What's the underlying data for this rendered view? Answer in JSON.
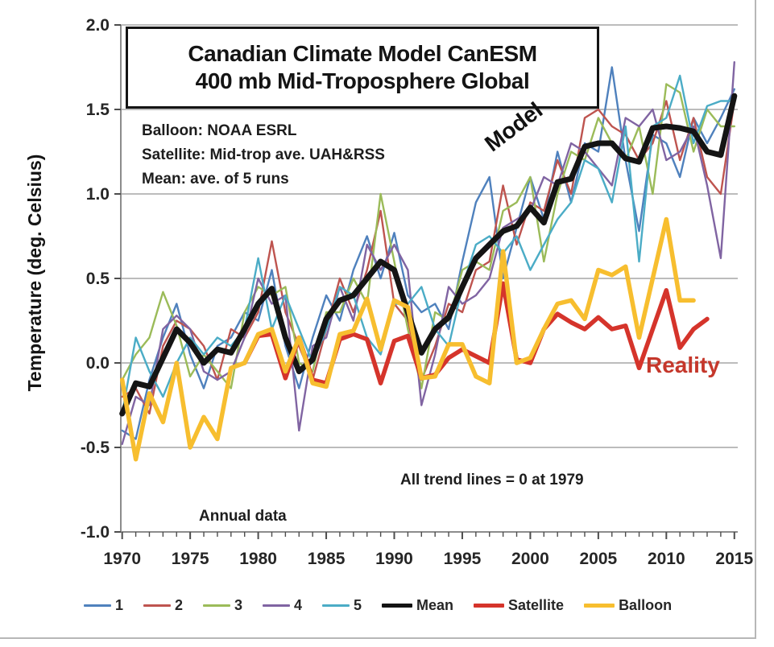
{
  "page": {
    "title_line1": "Canadian Climate Model CanESM",
    "title_line2": "400 mb Mid-Troposphere Global",
    "notes": {
      "balloon": "Balloon: NOAA ESRL",
      "satellite": "Satellite: Mid-trop ave. UAH&RSS",
      "mean": "Mean: ave. of 5 runs"
    },
    "model_annotation": "Model",
    "reality_annotation": "Reality",
    "trend_annotation": "All trend lines = 0 at 1979",
    "annual_annotation": "Annual data",
    "y_axis_label": "Temperature  (deg. Celsius)"
  },
  "colors": {
    "grid": "#a6a6a6",
    "axis": "#8c8c8c",
    "tick": "#4d4d4d",
    "tick_label": "#262626",
    "reality_label": "#c5372b",
    "frame_border": "#b7b7b7"
  },
  "chart_data": {
    "type": "line",
    "title": "Canadian Climate Model CanESM 400 mb Mid-Troposphere Global",
    "ylabel": "Temperature (deg. Celsius)",
    "xlabel": "",
    "grid": true,
    "legend_position": "bottom",
    "xlim": [
      1969.9,
      2015.25
    ],
    "ylim": [
      -1.0,
      2.0
    ],
    "x_ticks": [
      1970,
      1975,
      1980,
      1985,
      1990,
      1995,
      2000,
      2005,
      2010,
      2015
    ],
    "y_tick_labels": [
      "2.0",
      "1.5",
      "1.0",
      "0.5",
      "0.0",
      "-0.5",
      "-1.0"
    ],
    "y_ticks": [
      2.0,
      1.5,
      1.0,
      0.5,
      0.0,
      -0.5,
      -1.0
    ],
    "annotations": [
      "Model",
      "Reality",
      "All trend lines = 0 at 1979",
      "Annual data"
    ],
    "series": [
      {
        "name": "1",
        "color": "#4F81BD",
        "width": 2.4,
        "legend_thickness": 3,
        "legend_length": 34,
        "start_year": 1970,
        "values": [
          -0.4,
          -0.45,
          -0.1,
          0.15,
          0.35,
          0.05,
          -0.15,
          0.1,
          0.15,
          0.3,
          0.25,
          0.55,
          0.1,
          -0.15,
          0.15,
          0.4,
          0.25,
          0.55,
          0.75,
          0.5,
          0.77,
          0.4,
          0.3,
          0.35,
          0.2,
          0.6,
          0.95,
          1.1,
          0.5,
          0.8,
          1.1,
          0.85,
          1.25,
          0.95,
          1.3,
          1.25,
          1.75,
          1.2,
          0.78,
          1.35,
          1.3,
          1.1,
          1.45,
          1.3,
          1.45,
          1.62
        ]
      },
      {
        "name": "2",
        "color": "#BE544F",
        "width": 2.4,
        "legend_thickness": 3,
        "legend_length": 34,
        "start_year": 1970,
        "values": [
          -0.2,
          -0.15,
          -0.3,
          0.1,
          0.25,
          0.2,
          0.1,
          -0.1,
          0.2,
          0.15,
          0.3,
          0.72,
          0.3,
          0.1,
          -0.1,
          0.2,
          0.5,
          0.3,
          0.55,
          0.9,
          0.35,
          0.25,
          -0.1,
          0.1,
          0.35,
          0.3,
          0.55,
          0.6,
          1.05,
          0.7,
          0.95,
          0.9,
          1.2,
          1.0,
          1.45,
          1.5,
          1.4,
          1.35,
          1.2,
          1.3,
          1.55,
          1.2,
          1.45,
          1.1,
          1.0,
          1.55
        ]
      },
      {
        "name": "3",
        "color": "#9BBB59",
        "width": 2.4,
        "legend_thickness": 3,
        "legend_length": 34,
        "start_year": 1970,
        "values": [
          -0.1,
          0.05,
          0.15,
          0.42,
          0.22,
          -0.08,
          0.05,
          -0.05,
          -0.15,
          0.3,
          0.45,
          0.4,
          0.45,
          0.0,
          -0.05,
          0.3,
          0.3,
          0.5,
          0.35,
          1.0,
          0.6,
          0.2,
          -0.15,
          0.3,
          0.25,
          0.55,
          0.6,
          0.55,
          0.9,
          0.95,
          1.1,
          0.6,
          1.0,
          1.25,
          1.2,
          1.45,
          1.3,
          1.2,
          1.4,
          1.0,
          1.65,
          1.6,
          1.25,
          1.5,
          1.4,
          1.4
        ]
      },
      {
        "name": "4",
        "color": "#8064A2",
        "width": 2.4,
        "legend_thickness": 3,
        "legend_length": 34,
        "start_year": 1970,
        "values": [
          -0.48,
          -0.2,
          -0.25,
          0.2,
          0.28,
          0.2,
          -0.05,
          -0.1,
          -0.05,
          0.15,
          0.5,
          0.35,
          0.4,
          -0.4,
          0.1,
          0.15,
          0.45,
          0.25,
          0.7,
          0.55,
          0.7,
          0.55,
          -0.25,
          0.05,
          0.45,
          0.35,
          0.4,
          0.5,
          0.8,
          0.85,
          0.9,
          1.1,
          1.05,
          1.3,
          1.25,
          1.15,
          1.05,
          1.45,
          1.4,
          1.5,
          1.2,
          1.25,
          1.4,
          1.05,
          0.62,
          1.78
        ]
      },
      {
        "name": "5",
        "color": "#4BACC6",
        "width": 2.4,
        "legend_thickness": 3,
        "legend_length": 34,
        "start_year": 1970,
        "values": [
          -0.3,
          0.15,
          -0.05,
          -0.2,
          0.0,
          0.15,
          0.05,
          0.15,
          0.1,
          0.2,
          0.62,
          0.2,
          0.4,
          0.2,
          0.0,
          0.2,
          0.45,
          0.4,
          0.15,
          0.05,
          0.35,
          0.35,
          0.45,
          0.2,
          0.1,
          0.45,
          0.7,
          0.75,
          0.65,
          0.75,
          0.55,
          0.7,
          0.85,
          0.95,
          1.2,
          1.15,
          0.95,
          1.4,
          0.6,
          1.4,
          1.45,
          1.7,
          1.3,
          1.52,
          1.55,
          1.55
        ]
      },
      {
        "name": "Mean",
        "color": "#141414",
        "width": 7,
        "legend_thickness": 5,
        "legend_length": 38,
        "start_year": 1970,
        "values": [
          -0.3,
          -0.12,
          -0.14,
          0.03,
          0.2,
          0.12,
          0.0,
          0.08,
          0.06,
          0.2,
          0.35,
          0.44,
          0.15,
          -0.05,
          0.02,
          0.26,
          0.37,
          0.4,
          0.5,
          0.6,
          0.55,
          0.3,
          0.06,
          0.2,
          0.27,
          0.45,
          0.62,
          0.7,
          0.78,
          0.81,
          0.92,
          0.83,
          1.07,
          1.09,
          1.28,
          1.3,
          1.3,
          1.21,
          1.19,
          1.39,
          1.4,
          1.39,
          1.37,
          1.25,
          1.23,
          1.58
        ]
      },
      {
        "name": "Satellite",
        "color": "#D5342B",
        "width": 5.5,
        "legend_thickness": 5,
        "legend_length": 38,
        "start_year": 1979,
        "values": [
          0.0,
          0.16,
          0.17,
          -0.09,
          0.15,
          -0.1,
          -0.12,
          0.14,
          0.17,
          0.14,
          -0.12,
          0.13,
          0.16,
          -0.09,
          -0.07,
          0.03,
          0.08,
          0.04,
          0.0,
          0.47,
          0.02,
          0.0,
          0.2,
          0.29,
          0.24,
          0.2,
          0.27,
          0.2,
          0.22,
          -0.03,
          0.2,
          0.43,
          0.09,
          0.2,
          0.26
        ]
      },
      {
        "name": "Balloon",
        "color": "#F7BE2F",
        "width": 5.5,
        "legend_thickness": 5,
        "legend_length": 38,
        "start_year": 1970,
        "values": [
          -0.1,
          -0.57,
          -0.18,
          -0.35,
          0.0,
          -0.5,
          -0.32,
          -0.45,
          -0.03,
          0.0,
          0.17,
          0.2,
          -0.05,
          0.15,
          -0.12,
          -0.14,
          0.17,
          0.19,
          0.38,
          0.08,
          0.37,
          0.33,
          -0.09,
          -0.08,
          0.11,
          0.11,
          -0.08,
          -0.12,
          0.66,
          0.0,
          0.03,
          0.2,
          0.35,
          0.37,
          0.26,
          0.55,
          0.52,
          0.57,
          0.15,
          0.5,
          0.85,
          0.37,
          0.37
        ]
      }
    ]
  }
}
